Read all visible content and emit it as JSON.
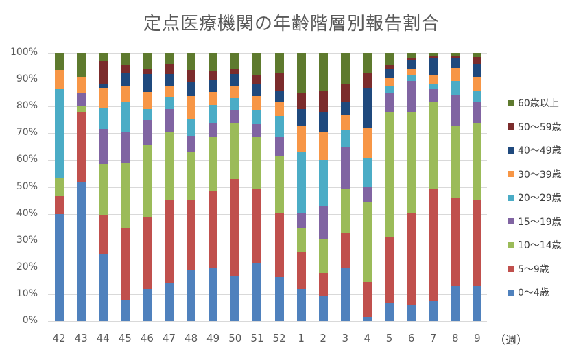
{
  "title": "定点医療機関の年齢階層別報告割合",
  "x_unit": "（週）",
  "y_ticks": [
    "0%",
    "10%",
    "20%",
    "30%",
    "40%",
    "50%",
    "60%",
    "70%",
    "80%",
    "90%",
    "100%"
  ],
  "chart_data": {
    "type": "bar",
    "stacked": true,
    "percent_stacked": true,
    "title": "定点医療機関の年齢階層別報告割合",
    "xlabel": "（週）",
    "ylabel": "",
    "ylim": [
      0,
      100
    ],
    "y_tick_labels": [
      "0%",
      "10%",
      "20%",
      "30%",
      "40%",
      "50%",
      "60%",
      "70%",
      "80%",
      "90%",
      "100%"
    ],
    "grid": true,
    "legend_position": "right",
    "categories": [
      "42",
      "43",
      "44",
      "45",
      "46",
      "47",
      "48",
      "49",
      "50",
      "51",
      "52",
      "1",
      "2",
      "3",
      "4",
      "5",
      "6",
      "7",
      "8",
      "9"
    ],
    "series": [
      {
        "name": "0～4歳",
        "color": "#4f81bd",
        "values": [
          40,
          52,
          25,
          8,
          12,
          14,
          19,
          20,
          17,
          21.5,
          16.5,
          12,
          9.5,
          20,
          1.5,
          7,
          6,
          7.5,
          13,
          13
        ]
      },
      {
        "name": "5～9歳",
        "color": "#c0504d",
        "values": [
          6.5,
          26,
          14.5,
          26.5,
          26.5,
          31,
          26,
          28.5,
          36,
          27.5,
          24,
          13.5,
          8.5,
          13,
          13,
          24.5,
          34.5,
          41.5,
          33,
          32
        ]
      },
      {
        "name": "10～14歳",
        "color": "#9bbb59",
        "values": [
          7,
          2,
          19,
          24.5,
          27,
          25.5,
          18,
          20,
          21,
          19.5,
          21,
          9,
          12.5,
          16,
          30,
          46.5,
          37.5,
          32.5,
          27,
          29
        ]
      },
      {
        "name": "15～19歳",
        "color": "#8064a2",
        "values": [
          0,
          5,
          13,
          11.5,
          9.5,
          8.5,
          6,
          5.5,
          4.5,
          5,
          7,
          6,
          12.5,
          16,
          5.5,
          7,
          11.5,
          5,
          11.5,
          7.5
        ]
      },
      {
        "name": "20～29歳",
        "color": "#4bacc6",
        "values": [
          33,
          0,
          8,
          11,
          4,
          4.5,
          6.5,
          6.5,
          4.5,
          5,
          8,
          22.5,
          17,
          6,
          11,
          2.5,
          2,
          2,
          5,
          4.5
        ]
      },
      {
        "name": "30～39歳",
        "color": "#f79646",
        "values": [
          7,
          6,
          7.5,
          6,
          6.5,
          4,
          8.5,
          5,
          4.5,
          5.5,
          5,
          10,
          10.5,
          6,
          11,
          3,
          2.5,
          3,
          5,
          5
        ]
      },
      {
        "name": "40～49歳",
        "color": "#1f497d",
        "values": [
          0,
          0,
          1.5,
          5,
          6.5,
          4.5,
          5,
          4.5,
          4.5,
          4.5,
          4.5,
          6,
          7.5,
          4.5,
          15,
          3.5,
          3.5,
          6.5,
          3.5,
          5
        ]
      },
      {
        "name": "50～59歳",
        "color": "#7b2c2c",
        "values": [
          0,
          0,
          8.5,
          3,
          2,
          4,
          4.5,
          3,
          2,
          3,
          6.5,
          6,
          8,
          7,
          5.5,
          1.5,
          0.5,
          1,
          1,
          2.5
        ]
      },
      {
        "name": "60歳以上",
        "color": "#5e7a2e",
        "values": [
          6.5,
          9,
          3,
          4.5,
          6,
          4,
          6.5,
          7,
          6,
          8.5,
          7.5,
          15,
          14,
          11.5,
          7.5,
          4.5,
          2,
          1,
          1,
          1.5
        ]
      }
    ]
  },
  "legend": [
    {
      "label": "60歳以上",
      "color": "#5e7a2e"
    },
    {
      "label": "50～59歳",
      "color": "#7b2c2c"
    },
    {
      "label": "40～49歳",
      "color": "#1f497d"
    },
    {
      "label": "30～39歳",
      "color": "#f79646"
    },
    {
      "label": "20～29歳",
      "color": "#4bacc6"
    },
    {
      "label": "15～19歳",
      "color": "#8064a2"
    },
    {
      "label": "10～14歳",
      "color": "#9bbb59"
    },
    {
      "label": "5～9歳",
      "color": "#c0504d"
    },
    {
      "label": "0～4歳",
      "color": "#4f81bd"
    }
  ]
}
